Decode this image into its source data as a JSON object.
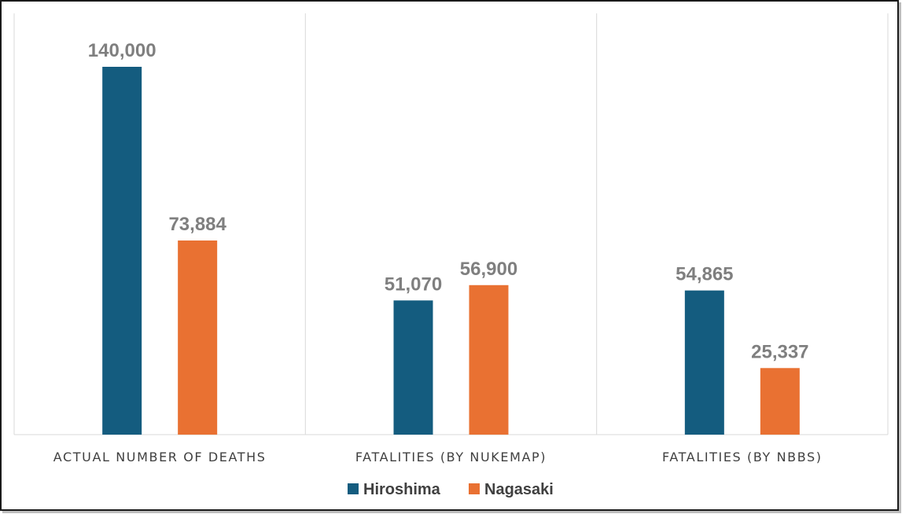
{
  "chart_data": {
    "type": "bar",
    "categories": [
      "ACTUAL NUMBER OF DEATHS",
      "FATALITIES (BY NUKEMAP)",
      "FATALITIES (BY NBBS)"
    ],
    "series": [
      {
        "name": "Hiroshima",
        "color": "#145c7f",
        "values": [
          140000,
          51070,
          54865
        ],
        "labels": [
          "140,000",
          "51,070",
          "54,865"
        ]
      },
      {
        "name": "Nagasaki",
        "color": "#e97132",
        "values": [
          73884,
          56900,
          25337
        ],
        "labels": [
          "73,884",
          "56,900",
          "25,337"
        ]
      }
    ],
    "ylim": [
      0,
      160000
    ],
    "grid": {
      "vertical_separators": true,
      "horizontal": false
    },
    "legend": {
      "position": "bottom-center"
    },
    "data_labels": true
  }
}
